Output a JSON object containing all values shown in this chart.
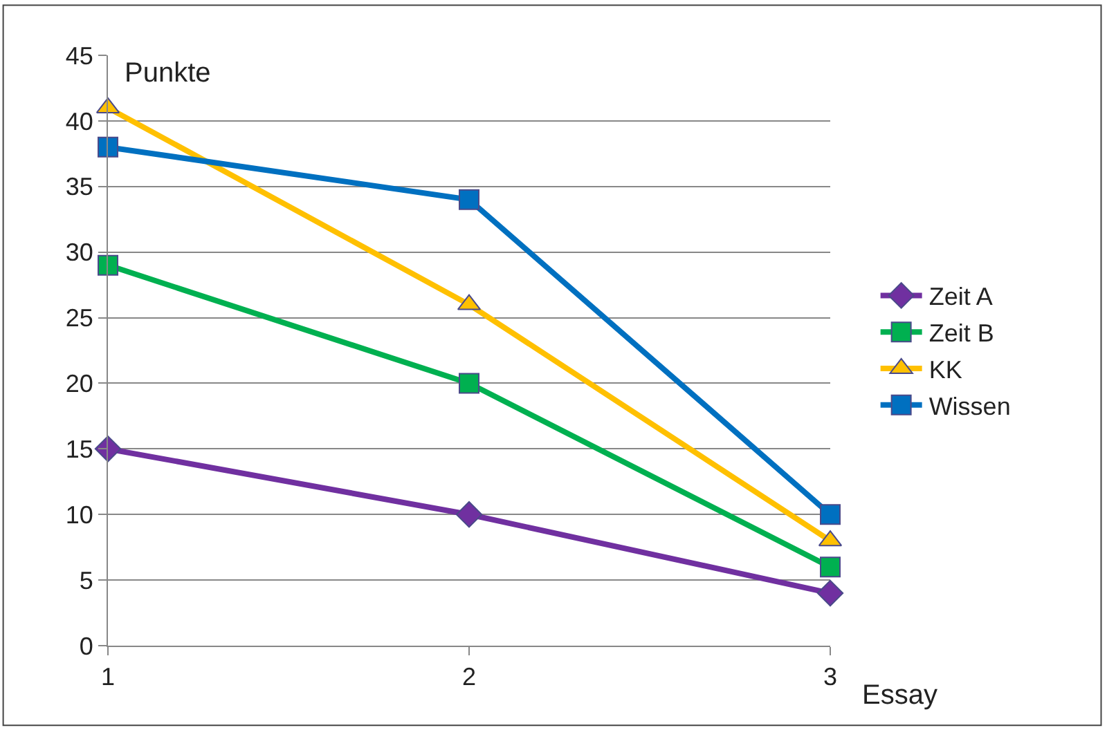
{
  "chart_data": {
    "type": "line",
    "ylabel": "Punkte",
    "xlabel": "Essay",
    "x": [
      1,
      2,
      3
    ],
    "xlim": [
      1,
      3
    ],
    "xticks": [
      1,
      2,
      3
    ],
    "ylim": [
      0,
      45
    ],
    "yticks": [
      0,
      5,
      10,
      15,
      20,
      25,
      30,
      35,
      40,
      45
    ],
    "grid": "y",
    "legend": "right",
    "series": [
      {
        "name": "Zeit A",
        "color": "#7030a0",
        "marker": "diamond",
        "values": [
          15,
          10,
          4
        ]
      },
      {
        "name": "Zeit B",
        "color": "#00b050",
        "marker": "square",
        "values": [
          29,
          20,
          6
        ]
      },
      {
        "name": "KK",
        "color": "#ffc000",
        "marker": "triangle",
        "values": [
          41,
          26,
          8
        ]
      },
      {
        "name": "Wissen",
        "color": "#0070c0",
        "marker": "square",
        "values": [
          38,
          34,
          10
        ]
      }
    ]
  }
}
